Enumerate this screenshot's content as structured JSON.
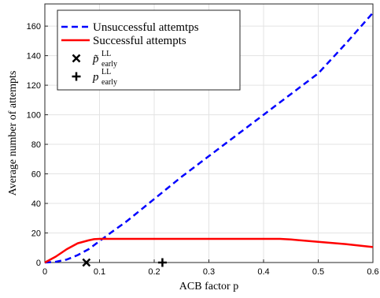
{
  "chart_data": {
    "type": "line",
    "xlabel": "ACB factor p",
    "ylabel": "Average number of attempts",
    "xlim": [
      0,
      0.6
    ],
    "ylim": [
      0,
      175
    ],
    "xticks": [
      "0",
      "0.1",
      "0.2",
      "0.3",
      "0.4",
      "0.5",
      "0.6"
    ],
    "yticks": [
      "0",
      "20",
      "40",
      "60",
      "80",
      "100",
      "120",
      "140",
      "160"
    ],
    "grid": true,
    "legend_position": "top-left",
    "series": [
      {
        "name": "Unsuccessful attemtps",
        "style": "dashed",
        "color": "#0000ff",
        "points": [
          [
            0,
            0
          ],
          [
            0.02,
            0.5
          ],
          [
            0.04,
            2
          ],
          [
            0.06,
            5
          ],
          [
            0.08,
            9
          ],
          [
            0.1,
            14.5
          ],
          [
            0.12,
            20
          ],
          [
            0.15,
            28
          ],
          [
            0.2,
            43
          ],
          [
            0.25,
            58
          ],
          [
            0.3,
            72
          ],
          [
            0.35,
            86
          ],
          [
            0.4,
            100
          ],
          [
            0.45,
            114
          ],
          [
            0.5,
            128
          ],
          [
            0.55,
            148
          ],
          [
            0.6,
            169
          ]
        ]
      },
      {
        "name": "Successful attempts",
        "style": "solid",
        "color": "#ff0000",
        "points": [
          [
            0,
            0
          ],
          [
            0.02,
            4
          ],
          [
            0.04,
            9
          ],
          [
            0.06,
            13
          ],
          [
            0.08,
            15
          ],
          [
            0.09,
            15.8
          ],
          [
            0.1,
            16
          ],
          [
            0.15,
            16
          ],
          [
            0.2,
            16
          ],
          [
            0.3,
            16
          ],
          [
            0.4,
            16
          ],
          [
            0.43,
            16
          ],
          [
            0.45,
            15.6
          ],
          [
            0.5,
            14
          ],
          [
            0.55,
            12.5
          ],
          [
            0.6,
            10.5
          ]
        ]
      }
    ],
    "markers": [
      {
        "name": "p_tilde_early_LL",
        "legend_main": "p̃",
        "legend_sup": "LL",
        "legend_sub": "early",
        "symbol": "x",
        "x": 0.076,
        "y": 0
      },
      {
        "name": "p_early_LL",
        "legend_main": "p",
        "legend_sup": "LL",
        "legend_sub": "early",
        "symbol": "+",
        "x": 0.215,
        "y": 0
      }
    ]
  }
}
